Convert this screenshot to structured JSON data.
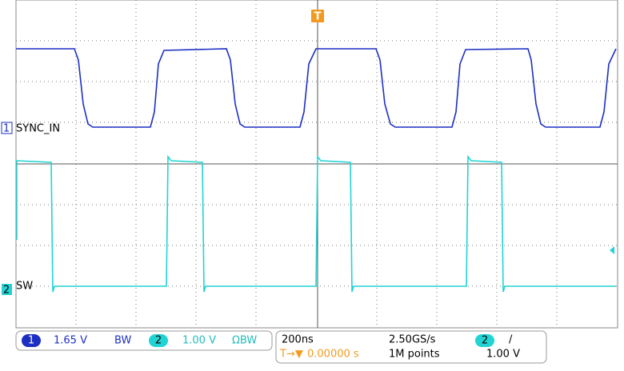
{
  "traces": [
    {
      "label": "SYNC_IN",
      "channel": "1"
    },
    {
      "label": "SW",
      "channel": "2"
    }
  ],
  "trigger_marker": "T",
  "status": {
    "ch1": {
      "badge": "1",
      "scale": "1.65 V",
      "bw": "BW"
    },
    "ch2": {
      "badge": "2",
      "scale": "1.00 V",
      "bw": "ΩBW"
    },
    "timebase": "200ns",
    "sample_rate": "2.50GS/s",
    "record": "1M points",
    "trigger": {
      "badge": "2",
      "slope": "/",
      "level": "1.00 V",
      "position": "0.00000 s",
      "position_prefix": "T→▼"
    }
  }
}
